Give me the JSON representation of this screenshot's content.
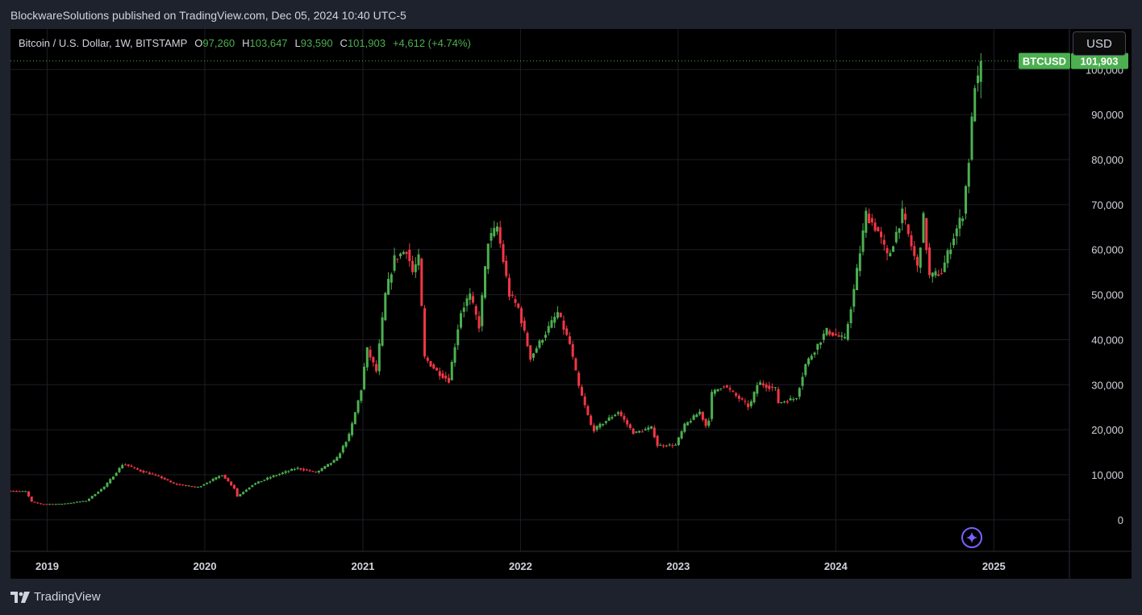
{
  "header": {
    "publisher_line": "BlockwareSolutions published on TradingView.com, Dec 05, 2024 10:40 UTC-5"
  },
  "legend": {
    "symbol": "Bitcoin / U.S. Dollar, 1W, BITSTAMP",
    "open_label": "O",
    "open_value": "97,260",
    "high_label": "H",
    "high_value": "103,647",
    "low_label": "L",
    "low_value": "93,590",
    "close_label": "C",
    "close_value": "101,903",
    "change_value": "+4,612 (+4.74%)"
  },
  "currency_button": {
    "label": "USD"
  },
  "price_tag": {
    "symbol": "BTCUSD",
    "price": "101,903",
    "value": 101903
  },
  "footer": {
    "brand": "TradingView"
  },
  "icons": {
    "logo": "tradingview-logo-icon",
    "assistant": "sparkle-icon"
  },
  "colors": {
    "up": "#4caf50",
    "down": "#f23645",
    "price_tag": "#4caf50",
    "background": "#000000",
    "frame": "#1e222d",
    "grid": "#1c1e24",
    "text": "#d1d4dc"
  },
  "chart_data": {
    "type": "candlestick",
    "title": "Bitcoin / U.S. Dollar, 1W, BITSTAMP",
    "xlabel": "",
    "ylabel": "",
    "ylim": [
      -7000,
      109000
    ],
    "y_ticks": [
      0,
      10000,
      20000,
      30000,
      40000,
      50000,
      60000,
      70000,
      80000,
      90000,
      100000
    ],
    "y_tick_labels": [
      "0",
      "10,000",
      "20,000",
      "30,000",
      "40,000",
      "50,000",
      "60,000",
      "70,000",
      "80,000",
      "90,000",
      "100,000"
    ],
    "x_range": [
      "2018-10-08",
      "2025-06-25"
    ],
    "x_ticks": [
      "2019-01-01",
      "2020-01-01",
      "2021-01-01",
      "2022-01-01",
      "2023-01-01",
      "2024-01-01",
      "2025-01-01"
    ],
    "x_tick_labels": [
      "2019",
      "2020",
      "2021",
      "2022",
      "2023",
      "2024",
      "2025"
    ],
    "grid": true,
    "last_price": 101903,
    "anchors": [
      [
        "2018-10-08",
        6400
      ],
      [
        "2018-11-12",
        6300
      ],
      [
        "2018-11-26",
        4000
      ],
      [
        "2018-12-17",
        3500
      ],
      [
        "2019-02-01",
        3500
      ],
      [
        "2019-04-01",
        4200
      ],
      [
        "2019-05-15",
        7500
      ],
      [
        "2019-06-26",
        12500
      ],
      [
        "2019-08-01",
        11000
      ],
      [
        "2019-09-20",
        9500
      ],
      [
        "2019-10-20",
        8000
      ],
      [
        "2019-12-15",
        7200
      ],
      [
        "2020-02-10",
        10000
      ],
      [
        "2020-03-09",
        7000
      ],
      [
        "2020-03-16",
        5200
      ],
      [
        "2020-04-20",
        7800
      ],
      [
        "2020-06-01",
        9500
      ],
      [
        "2020-08-01",
        11500
      ],
      [
        "2020-09-15",
        10500
      ],
      [
        "2020-11-01",
        13500
      ],
      [
        "2020-12-01",
        19000
      ],
      [
        "2020-12-28",
        29000
      ],
      [
        "2021-01-10",
        38000
      ],
      [
        "2021-02-01",
        33000
      ],
      [
        "2021-02-22",
        50000
      ],
      [
        "2021-03-15",
        58000
      ],
      [
        "2021-04-12",
        60000
      ],
      [
        "2021-04-26",
        55000
      ],
      [
        "2021-05-10",
        58000
      ],
      [
        "2021-05-24",
        36000
      ],
      [
        "2021-06-21",
        33000
      ],
      [
        "2021-07-19",
        31000
      ],
      [
        "2021-08-15",
        46000
      ],
      [
        "2021-09-05",
        50000
      ],
      [
        "2021-09-27",
        43000
      ],
      [
        "2021-10-18",
        62000
      ],
      [
        "2021-11-08",
        65000
      ],
      [
        "2021-12-06",
        50000
      ],
      [
        "2021-12-27",
        47000
      ],
      [
        "2022-01-24",
        36000
      ],
      [
        "2022-03-28",
        46000
      ],
      [
        "2022-04-25",
        39000
      ],
      [
        "2022-05-16",
        29500
      ],
      [
        "2022-06-13",
        21000
      ],
      [
        "2022-06-20",
        20000
      ],
      [
        "2022-08-15",
        24000
      ],
      [
        "2022-09-20",
        19200
      ],
      [
        "2022-11-01",
        20500
      ],
      [
        "2022-11-14",
        16500
      ],
      [
        "2022-12-26",
        16600
      ],
      [
        "2023-01-16",
        21000
      ],
      [
        "2023-02-20",
        24000
      ],
      [
        "2023-03-10",
        20000
      ],
      [
        "2023-03-20",
        28000
      ],
      [
        "2023-04-15",
        30000
      ],
      [
        "2023-06-15",
        25000
      ],
      [
        "2023-07-05",
        30500
      ],
      [
        "2023-08-15",
        29000
      ],
      [
        "2023-08-20",
        26000
      ],
      [
        "2023-10-01",
        27000
      ],
      [
        "2023-10-23",
        34500
      ],
      [
        "2023-12-10",
        42000
      ],
      [
        "2024-01-22",
        40000
      ],
      [
        "2024-02-12",
        51000
      ],
      [
        "2024-03-11",
        68000
      ],
      [
        "2024-04-08",
        64000
      ],
      [
        "2024-05-01",
        58000
      ],
      [
        "2024-06-03",
        68000
      ],
      [
        "2024-07-08",
        56000
      ],
      [
        "2024-07-22",
        67000
      ],
      [
        "2024-08-05",
        54000
      ],
      [
        "2024-09-02",
        55000
      ],
      [
        "2024-09-30",
        63000
      ],
      [
        "2024-10-21",
        68000
      ],
      [
        "2024-11-04",
        80000
      ],
      [
        "2024-11-18",
        97000
      ],
      [
        "2024-11-25",
        97260
      ],
      [
        "2024-12-02",
        101903
      ]
    ],
    "last_candle": {
      "date": "2024-12-02",
      "open": 97260,
      "high": 103647,
      "low": 93590,
      "close": 101903
    }
  }
}
